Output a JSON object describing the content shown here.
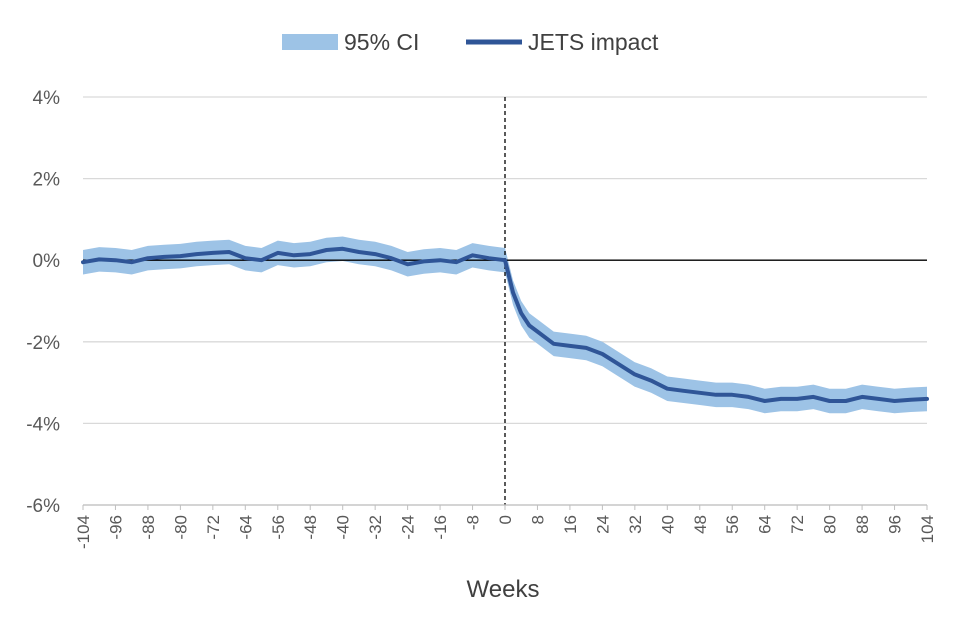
{
  "chart_data": {
    "type": "line",
    "title": "",
    "xlabel": "Weeks",
    "ylabel": "",
    "xlim": [
      -104,
      104
    ],
    "ylim": [
      -6,
      4
    ],
    "x_ticks": [
      -104,
      -96,
      -88,
      -80,
      -72,
      -64,
      -56,
      -48,
      -40,
      -32,
      -24,
      -16,
      -8,
      0,
      8,
      16,
      24,
      32,
      40,
      48,
      56,
      64,
      72,
      80,
      88,
      96,
      104
    ],
    "y_ticks": [
      -6,
      -4,
      -2,
      0,
      2,
      4
    ],
    "y_tick_labels": [
      "-6%",
      "-4%",
      "-2%",
      "0%",
      "2%",
      "4%"
    ],
    "grid": "horizontal",
    "reference_lines": {
      "y_zero": "solid",
      "x_zero": "dashed"
    },
    "legend": {
      "position": "top",
      "entries": [
        "95% CI",
        "JETS impact"
      ]
    },
    "colors": {
      "ci_band": "#9dc3e6",
      "line": "#2f5597",
      "grid": "#d9d9d9",
      "axis": "#000000"
    },
    "series": [
      {
        "name": "JETS impact",
        "ci_halfwidth": 0.3,
        "x": [
          -104,
          -100,
          -96,
          -92,
          -88,
          -84,
          -80,
          -76,
          -72,
          -68,
          -64,
          -60,
          -56,
          -52,
          -48,
          -44,
          -40,
          -36,
          -32,
          -28,
          -24,
          -20,
          -16,
          -12,
          -8,
          -4,
          0,
          2,
          4,
          6,
          8,
          12,
          16,
          20,
          24,
          28,
          32,
          36,
          40,
          44,
          48,
          52,
          56,
          60,
          64,
          68,
          72,
          76,
          80,
          84,
          88,
          92,
          96,
          100,
          104
        ],
        "values": [
          -0.05,
          0.02,
          0.0,
          -0.05,
          0.05,
          0.08,
          0.1,
          0.15,
          0.18,
          0.2,
          0.05,
          0.0,
          0.18,
          0.12,
          0.15,
          0.25,
          0.28,
          0.2,
          0.15,
          0.05,
          -0.1,
          -0.03,
          0.0,
          -0.05,
          0.12,
          0.05,
          0.0,
          -0.8,
          -1.3,
          -1.6,
          -1.75,
          -2.05,
          -2.1,
          -2.15,
          -2.3,
          -2.55,
          -2.8,
          -2.95,
          -3.15,
          -3.2,
          -3.25,
          -3.3,
          -3.3,
          -3.35,
          -3.45,
          -3.4,
          -3.4,
          -3.35,
          -3.45,
          -3.45,
          -3.35,
          -3.4,
          -3.45,
          -3.42,
          -3.4
        ]
      }
    ]
  }
}
